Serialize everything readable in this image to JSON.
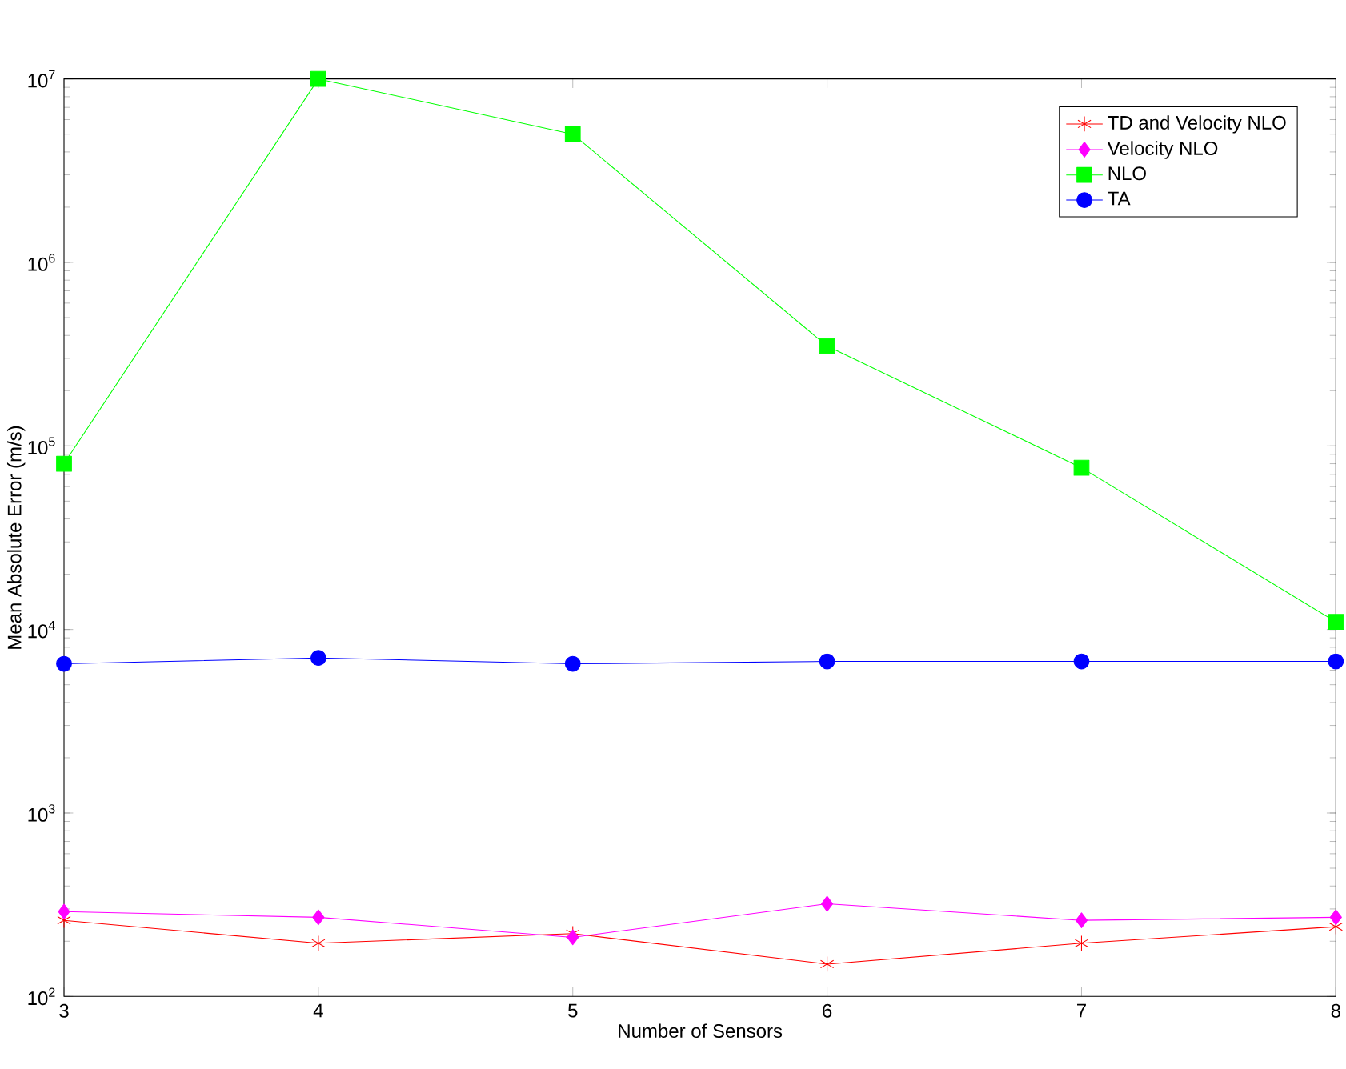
{
  "chart_data": {
    "type": "line",
    "xlabel": "Number of Sensors",
    "ylabel": "Mean Absolute Error (m/s)",
    "x": [
      3,
      4,
      5,
      6,
      7,
      8
    ],
    "log": "y",
    "xlim": [
      3,
      8
    ],
    "ylim": [
      100,
      10000000
    ],
    "xticks": [
      3,
      4,
      5,
      6,
      7,
      8
    ],
    "yticks": [
      {
        "value": 100,
        "label": "10$^{2}$"
      },
      {
        "value": 1000,
        "label": "10$^{3}$"
      },
      {
        "value": 10000,
        "label": "10$^{4}$"
      },
      {
        "value": 100000,
        "label": "10$^{5}$"
      },
      {
        "value": 1000000,
        "label": "10$^{6}$"
      },
      {
        "value": 10000000,
        "label": "10$^{7}$"
      }
    ],
    "grid": false,
    "legend": "top right",
    "line_style": "solid",
    "series": [
      {
        "name": "TD and Velocity NLO",
        "color": "#ff0000",
        "marker": "cross",
        "values": [
          260,
          195,
          220,
          150,
          195,
          240
        ]
      },
      {
        "name": "Velocity NLO",
        "color": "#ff00ff",
        "marker": "diamond",
        "values": [
          290,
          270,
          210,
          320,
          260,
          270
        ]
      },
      {
        "name": "NLO",
        "color": "#00ff00",
        "marker": "square",
        "values": [
          80000,
          10000000,
          5000000,
          350000,
          76000,
          11000
        ]
      },
      {
        "name": "TA",
        "color": "#0000ff",
        "marker": "circle",
        "values": [
          6500,
          7000,
          6500,
          6700,
          6700,
          6700
        ]
      }
    ]
  }
}
